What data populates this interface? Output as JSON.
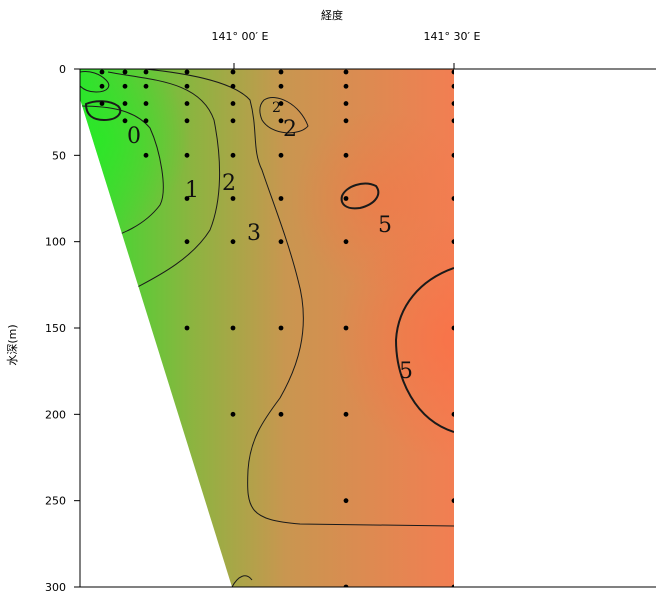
{
  "chart_data": {
    "type": "heatmap",
    "title": "",
    "xlabel": "経度",
    "ylabel": "水深(m)",
    "x_ticks": [
      "141° 00′ E",
      "141° 30′ E"
    ],
    "y_ticks": [
      0,
      50,
      100,
      150,
      200,
      250,
      300
    ],
    "ylim": [
      0,
      300
    ],
    "y_reversed": true,
    "colormap": [
      "#2ee22e",
      "#8cb440",
      "#c99650",
      "#f27e52"
    ],
    "contour_levels": [
      0,
      1,
      2,
      3,
      5
    ],
    "contour_labels": [
      {
        "text": "0",
        "depth": 37
      },
      {
        "text": "1",
        "depth": 70
      },
      {
        "text": "2",
        "depth": 64
      },
      {
        "text": "2",
        "depth": 37
      },
      {
        "text": "2",
        "depth": 18
      },
      {
        "text": "3",
        "depth": 95
      },
      {
        "text": "5",
        "depth": 88
      },
      {
        "text": "5",
        "depth": 170
      }
    ],
    "sample_depths": [
      0,
      10,
      20,
      30,
      50,
      75,
      100,
      150,
      200,
      250,
      300
    ]
  }
}
